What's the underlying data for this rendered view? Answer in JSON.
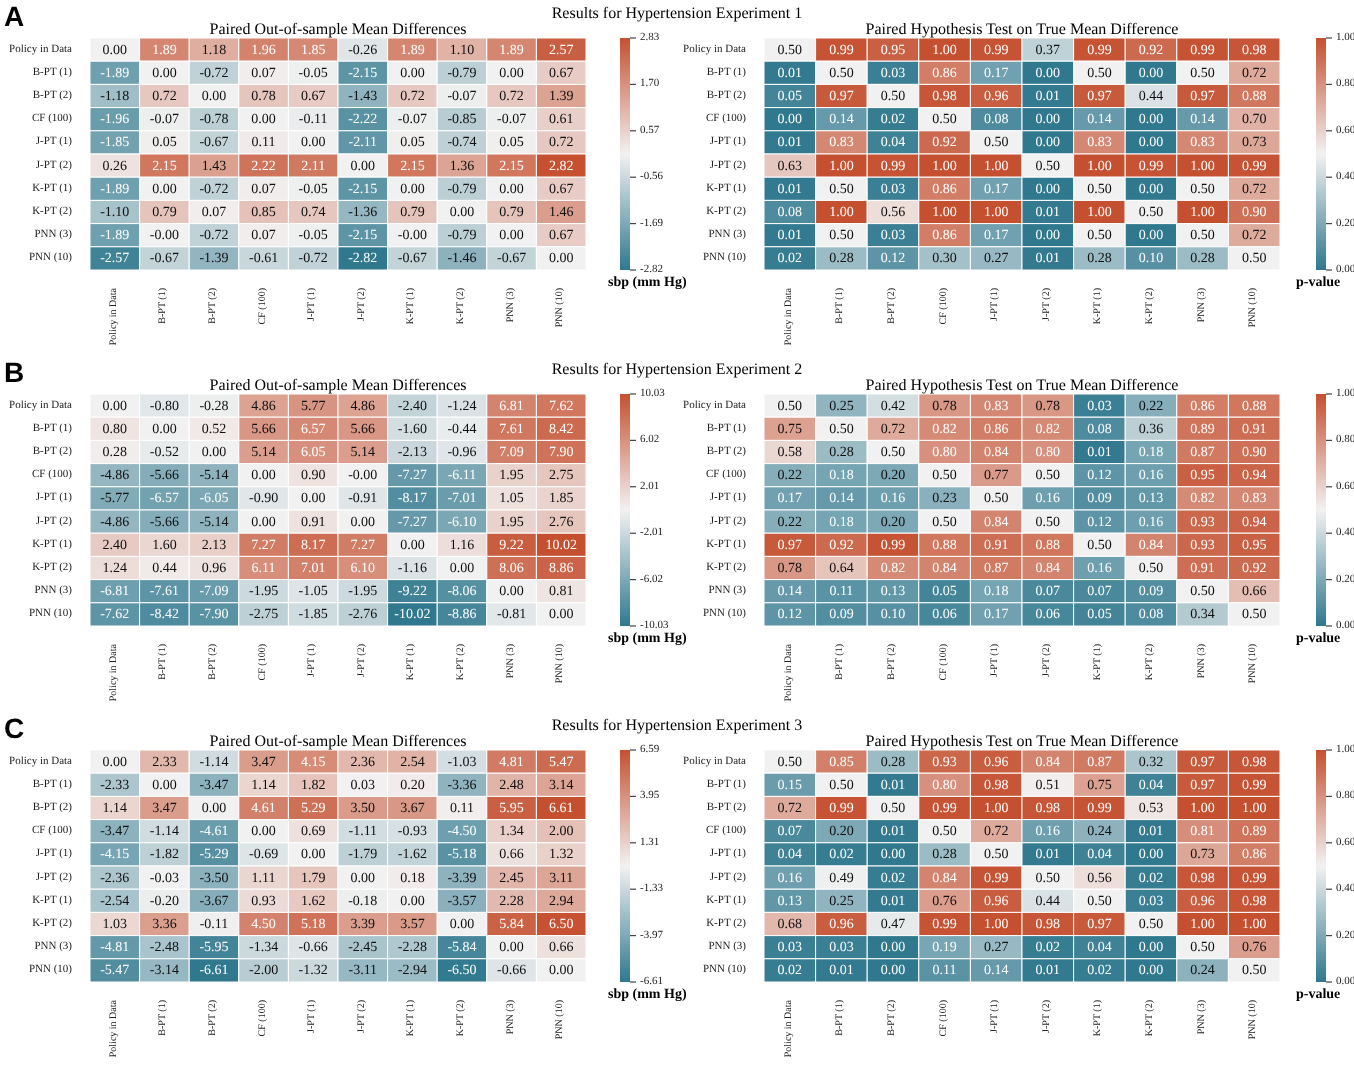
{
  "chart_data": [
    {
      "type": "heatmap",
      "title": "Paired Out-of-sample Mean Differences",
      "annotations": [
        "A",
        "Results for Hypertension Experiment 1"
      ],
      "clabel": "sbp (mm Hg)",
      "categories": [
        "Policy in Data",
        "B-PT (1)",
        "B-PT (2)",
        "CF (100)",
        "J-PT (1)",
        "J-PT (2)",
        "K-PT (1)",
        "K-PT (2)",
        "PNN (3)",
        "PNN (10)"
      ],
      "y_categories": [
        "Policy in Data",
        "B-PT (1)",
        "B-PT (2)",
        "CF (100)",
        "J-PT (1)",
        "J-PT (2)",
        "K-PT (1)",
        "K-PT (2)",
        "PNN (3)",
        "PNN (10)"
      ],
      "cells": [
        [
          0.0,
          1.89,
          1.18,
          1.96,
          1.85,
          -0.26,
          1.89,
          1.1,
          1.89,
          2.57
        ],
        [
          -1.89,
          0.0,
          -0.72,
          0.07,
          -0.05,
          -2.15,
          0.0,
          -0.79,
          0.0,
          0.67
        ],
        [
          -1.18,
          0.72,
          0.0,
          0.78,
          0.67,
          -1.43,
          0.72,
          -0.07,
          0.72,
          1.39
        ],
        [
          -1.96,
          -0.07,
          -0.78,
          0.0,
          -0.11,
          -2.22,
          -0.07,
          -0.85,
          -0.07,
          0.61
        ],
        [
          -1.85,
          0.05,
          -0.67,
          0.11,
          0.0,
          -2.11,
          0.05,
          -0.74,
          0.05,
          0.72
        ],
        [
          0.26,
          2.15,
          1.43,
          2.22,
          2.11,
          0.0,
          2.15,
          1.36,
          2.15,
          2.82
        ],
        [
          -1.89,
          0.0,
          -0.72,
          0.07,
          -0.05,
          -2.15,
          0.0,
          -0.79,
          0.0,
          0.67
        ],
        [
          -1.1,
          0.79,
          0.07,
          0.85,
          0.74,
          -1.36,
          0.79,
          0.0,
          0.79,
          1.46
        ],
        [
          -1.89,
          0,
          -0.72,
          0.07,
          -0.05,
          -2.15,
          0,
          -0.79,
          0.0,
          0.67
        ],
        [
          -2.57,
          -0.67,
          -1.39,
          -0.61,
          -0.72,
          -2.82,
          -0.67,
          -1.46,
          -0.67,
          0.0
        ]
      ],
      "cell_labels": [
        [
          "0.00",
          "1.89",
          "1.18",
          "1.96",
          "1.85",
          "-0.26",
          "1.89",
          "1.10",
          "1.89",
          "2.57"
        ],
        [
          "-1.89",
          "0.00",
          "-0.72",
          "0.07",
          "-0.05",
          "-2.15",
          "0.00",
          "-0.79",
          "0.00",
          "0.67"
        ],
        [
          "-1.18",
          "0.72",
          "0.00",
          "0.78",
          "0.67",
          "-1.43",
          "0.72",
          "-0.07",
          "0.72",
          "1.39"
        ],
        [
          "-1.96",
          "-0.07",
          "-0.78",
          "0.00",
          "-0.11",
          "-2.22",
          "-0.07",
          "-0.85",
          "-0.07",
          "0.61"
        ],
        [
          "-1.85",
          "0.05",
          "-0.67",
          "0.11",
          "0.00",
          "-2.11",
          "0.05",
          "-0.74",
          "0.05",
          "0.72"
        ],
        [
          "0.26",
          "2.15",
          "1.43",
          "2.22",
          "2.11",
          "0.00",
          "2.15",
          "1.36",
          "2.15",
          "2.82"
        ],
        [
          "-1.89",
          "0.00",
          "-0.72",
          "0.07",
          "-0.05",
          "-2.15",
          "0.00",
          "-0.79",
          "0.00",
          "0.67"
        ],
        [
          "-1.10",
          "0.79",
          "0.07",
          "0.85",
          "0.74",
          "-1.36",
          "0.79",
          "0.00",
          "0.79",
          "1.46"
        ],
        [
          "-1.89",
          "-0.00",
          "-0.72",
          "0.07",
          "-0.05",
          "-2.15",
          "-0.00",
          "-0.79",
          "0.00",
          "0.67"
        ],
        [
          "-2.57",
          "-0.67",
          "-1.39",
          "-0.61",
          "-0.72",
          "-2.82",
          "-0.67",
          "-1.46",
          "-0.67",
          "0.00"
        ]
      ],
      "clim": [
        -2.82,
        2.83
      ],
      "cticks": [
        {
          "value": 2.83,
          "label": "2.83"
        },
        {
          "value": 1.7,
          "label": "1.70"
        },
        {
          "value": 0.57,
          "label": "0.57"
        },
        {
          "value": -0.56,
          "label": "-0.56"
        },
        {
          "value": -1.69,
          "label": "-1.69"
        },
        {
          "value": -2.82,
          "label": "-2.82"
        }
      ]
    },
    {
      "type": "heatmap",
      "title": "Paired Hypothesis Test on True Mean Difference",
      "clabel": "p-value",
      "categories": [
        "Policy in Data",
        "B-PT (1)",
        "B-PT (2)",
        "CF (100)",
        "J-PT (1)",
        "J-PT (2)",
        "K-PT (1)",
        "K-PT (2)",
        "PNN (3)",
        "PNN (10)"
      ],
      "y_categories": [
        "Policy in Data",
        "B-PT (1)",
        "B-PT (2)",
        "CF (100)",
        "J-PT (1)",
        "J-PT (2)",
        "K-PT (1)",
        "K-PT (2)",
        "PNN (3)",
        "PNN (10)"
      ],
      "cells": [
        [
          0.5,
          0.99,
          0.95,
          1.0,
          0.99,
          0.37,
          0.99,
          0.92,
          0.99,
          0.98
        ],
        [
          0.01,
          0.5,
          0.03,
          0.86,
          0.17,
          0.0,
          0.5,
          0.0,
          0.5,
          0.72
        ],
        [
          0.05,
          0.97,
          0.5,
          0.98,
          0.96,
          0.01,
          0.97,
          0.44,
          0.97,
          0.88
        ],
        [
          0.0,
          0.14,
          0.02,
          0.5,
          0.08,
          0.0,
          0.14,
          0.0,
          0.14,
          0.7
        ],
        [
          0.01,
          0.83,
          0.04,
          0.92,
          0.5,
          0.0,
          0.83,
          0.0,
          0.83,
          0.73
        ],
        [
          0.63,
          1.0,
          0.99,
          1.0,
          1.0,
          0.5,
          1.0,
          0.99,
          1.0,
          0.99
        ],
        [
          0.01,
          0.5,
          0.03,
          0.86,
          0.17,
          0.0,
          0.5,
          0.0,
          0.5,
          0.72
        ],
        [
          0.08,
          1.0,
          0.56,
          1.0,
          1.0,
          0.01,
          1.0,
          0.5,
          1.0,
          0.9
        ],
        [
          0.01,
          0.5,
          0.03,
          0.86,
          0.17,
          0.0,
          0.5,
          0.0,
          0.5,
          0.72
        ],
        [
          0.02,
          0.28,
          0.12,
          0.3,
          0.27,
          0.01,
          0.28,
          0.1,
          0.28,
          0.5
        ]
      ],
      "cell_labels": [
        [
          "0.50",
          "0.99",
          "0.95",
          "1.00",
          "0.99",
          "0.37",
          "0.99",
          "0.92",
          "0.99",
          "0.98"
        ],
        [
          "0.01",
          "0.50",
          "0.03",
          "0.86",
          "0.17",
          "0.00",
          "0.50",
          "0.00",
          "0.50",
          "0.72"
        ],
        [
          "0.05",
          "0.97",
          "0.50",
          "0.98",
          "0.96",
          "0.01",
          "0.97",
          "0.44",
          "0.97",
          "0.88"
        ],
        [
          "0.00",
          "0.14",
          "0.02",
          "0.50",
          "0.08",
          "0.00",
          "0.14",
          "0.00",
          "0.14",
          "0.70"
        ],
        [
          "0.01",
          "0.83",
          "0.04",
          "0.92",
          "0.50",
          "0.00",
          "0.83",
          "0.00",
          "0.83",
          "0.73"
        ],
        [
          "0.63",
          "1.00",
          "0.99",
          "1.00",
          "1.00",
          "0.50",
          "1.00",
          "0.99",
          "1.00",
          "0.99"
        ],
        [
          "0.01",
          "0.50",
          "0.03",
          "0.86",
          "0.17",
          "0.00",
          "0.50",
          "0.00",
          "0.50",
          "0.72"
        ],
        [
          "0.08",
          "1.00",
          "0.56",
          "1.00",
          "1.00",
          "0.01",
          "1.00",
          "0.50",
          "1.00",
          "0.90"
        ],
        [
          "0.01",
          "0.50",
          "0.03",
          "0.86",
          "0.17",
          "0.00",
          "0.50",
          "0.00",
          "0.50",
          "0.72"
        ],
        [
          "0.02",
          "0.28",
          "0.12",
          "0.30",
          "0.27",
          "0.01",
          "0.28",
          "0.10",
          "0.28",
          "0.50"
        ]
      ],
      "clim": [
        0,
        1
      ],
      "cticks": [
        {
          "value": 0,
          "label": "0.00"
        },
        {
          "value": 0.2,
          "label": "0.20"
        },
        {
          "value": 0.4,
          "label": "0.40"
        },
        {
          "value": 0.6,
          "label": "0.60"
        },
        {
          "value": 0.8,
          "label": "0.80"
        },
        {
          "value": 1,
          "label": "1.00"
        }
      ]
    },
    {
      "type": "heatmap",
      "title": "Paired Out-of-sample Mean Differences",
      "annotations": [
        "B",
        "Results for Hypertension Experiment 2"
      ],
      "clabel": "sbp (mm Hg)",
      "categories": [
        "Policy in Data",
        "B-PT (1)",
        "B-PT (2)",
        "CF (100)",
        "J-PT (1)",
        "J-PT (2)",
        "K-PT (1)",
        "K-PT (2)",
        "PNN (3)",
        "PNN (10)"
      ],
      "y_categories": [
        "Policy in Data",
        "B-PT (1)",
        "B-PT (2)",
        "CF (100)",
        "J-PT (1)",
        "J-PT (2)",
        "K-PT (1)",
        "K-PT (2)",
        "PNN (3)",
        "PNN (10)"
      ],
      "cells": [
        [
          0.0,
          -0.8,
          -0.28,
          4.86,
          5.77,
          4.86,
          -2.4,
          -1.24,
          6.81,
          7.62
        ],
        [
          0.8,
          0.0,
          0.52,
          5.66,
          6.57,
          5.66,
          -1.6,
          -0.44,
          7.61,
          8.42
        ],
        [
          0.28,
          -0.52,
          0.0,
          5.14,
          6.05,
          5.14,
          -2.13,
          -0.96,
          7.09,
          7.9
        ],
        [
          -4.86,
          -5.66,
          -5.14,
          0.0,
          0.9,
          0,
          -7.27,
          -6.11,
          1.95,
          2.75
        ],
        [
          -5.77,
          -6.57,
          -6.05,
          -0.9,
          0.0,
          -0.91,
          -8.17,
          -7.01,
          1.05,
          1.85
        ],
        [
          -4.86,
          -5.66,
          -5.14,
          0.0,
          0.91,
          0.0,
          -7.27,
          -6.1,
          1.95,
          2.76
        ],
        [
          2.4,
          1.6,
          2.13,
          7.27,
          8.17,
          7.27,
          0.0,
          1.16,
          9.22,
          10.02
        ],
        [
          1.24,
          0.44,
          0.96,
          6.11,
          7.01,
          6.1,
          -1.16,
          0.0,
          8.06,
          8.86
        ],
        [
          -6.81,
          -7.61,
          -7.09,
          -1.95,
          -1.05,
          -1.95,
          -9.22,
          -8.06,
          0.0,
          0.81
        ],
        [
          -7.62,
          -8.42,
          -7.9,
          -2.75,
          -1.85,
          -2.76,
          -10.02,
          -8.86,
          -0.81,
          0.0
        ]
      ],
      "cell_labels": [
        [
          "0.00",
          "-0.80",
          "-0.28",
          "4.86",
          "5.77",
          "4.86",
          "-2.40",
          "-1.24",
          "6.81",
          "7.62"
        ],
        [
          "0.80",
          "0.00",
          "0.52",
          "5.66",
          "6.57",
          "5.66",
          "-1.60",
          "-0.44",
          "7.61",
          "8.42"
        ],
        [
          "0.28",
          "-0.52",
          "0.00",
          "5.14",
          "6.05",
          "5.14",
          "-2.13",
          "-0.96",
          "7.09",
          "7.90"
        ],
        [
          "-4.86",
          "-5.66",
          "-5.14",
          "0.00",
          "0.90",
          "-0.00",
          "-7.27",
          "-6.11",
          "1.95",
          "2.75"
        ],
        [
          "-5.77",
          "-6.57",
          "-6.05",
          "-0.90",
          "0.00",
          "-0.91",
          "-8.17",
          "-7.01",
          "1.05",
          "1.85"
        ],
        [
          "-4.86",
          "-5.66",
          "-5.14",
          "0.00",
          "0.91",
          "0.00",
          "-7.27",
          "-6.10",
          "1.95",
          "2.76"
        ],
        [
          "2.40",
          "1.60",
          "2.13",
          "7.27",
          "8.17",
          "7.27",
          "0.00",
          "1.16",
          "9.22",
          "10.02"
        ],
        [
          "1.24",
          "0.44",
          "0.96",
          "6.11",
          "7.01",
          "6.10",
          "-1.16",
          "0.00",
          "8.06",
          "8.86"
        ],
        [
          "-6.81",
          "-7.61",
          "-7.09",
          "-1.95",
          "-1.05",
          "-1.95",
          "-9.22",
          "-8.06",
          "0.00",
          "0.81"
        ],
        [
          "-7.62",
          "-8.42",
          "-7.90",
          "-2.75",
          "-1.85",
          "-2.76",
          "-10.02",
          "-8.86",
          "-0.81",
          "0.00"
        ]
      ],
      "clim": [
        -10.03,
        10.03
      ],
      "cticks": [
        {
          "value": 10.03,
          "label": "10.03"
        },
        {
          "value": 6.02,
          "label": "6.02"
        },
        {
          "value": 2.01,
          "label": "2.01"
        },
        {
          "value": -2.01,
          "label": "-2.01"
        },
        {
          "value": -6.02,
          "label": "-6.02"
        },
        {
          "value": -10.03,
          "label": "-10.03"
        }
      ]
    },
    {
      "type": "heatmap",
      "title": "Paired Hypothesis Test on True Mean Difference",
      "clabel": "p-value",
      "categories": [
        "Policy in Data",
        "B-PT (1)",
        "B-PT (2)",
        "CF (100)",
        "J-PT (1)",
        "J-PT (2)",
        "K-PT (1)",
        "K-PT (2)",
        "PNN (3)",
        "PNN (10)"
      ],
      "y_categories": [
        "Policy in Data",
        "B-PT (1)",
        "B-PT (2)",
        "CF (100)",
        "J-PT (1)",
        "J-PT (2)",
        "K-PT (1)",
        "K-PT (2)",
        "PNN (3)",
        "PNN (10)"
      ],
      "cells": [
        [
          0.5,
          0.25,
          0.42,
          0.78,
          0.83,
          0.78,
          0.03,
          0.22,
          0.86,
          0.88
        ],
        [
          0.75,
          0.5,
          0.72,
          0.82,
          0.86,
          0.82,
          0.08,
          0.36,
          0.89,
          0.91
        ],
        [
          0.58,
          0.28,
          0.5,
          0.8,
          0.84,
          0.8,
          0.01,
          0.18,
          0.87,
          0.9
        ],
        [
          0.22,
          0.18,
          0.2,
          0.5,
          0.77,
          0.5,
          0.12,
          0.16,
          0.95,
          0.94
        ],
        [
          0.17,
          0.14,
          0.16,
          0.23,
          0.5,
          0.16,
          0.09,
          0.13,
          0.82,
          0.83
        ],
        [
          0.22,
          0.18,
          0.2,
          0.5,
          0.84,
          0.5,
          0.12,
          0.16,
          0.93,
          0.94
        ],
        [
          0.97,
          0.92,
          0.99,
          0.88,
          0.91,
          0.88,
          0.5,
          0.84,
          0.93,
          0.95
        ],
        [
          0.78,
          0.64,
          0.82,
          0.84,
          0.87,
          0.84,
          0.16,
          0.5,
          0.91,
          0.92
        ],
        [
          0.14,
          0.11,
          0.13,
          0.05,
          0.18,
          0.07,
          0.07,
          0.09,
          0.5,
          0.66
        ],
        [
          0.12,
          0.09,
          0.1,
          0.06,
          0.17,
          0.06,
          0.05,
          0.08,
          0.34,
          0.5
        ]
      ],
      "cell_labels": [
        [
          "0.50",
          "0.25",
          "0.42",
          "0.78",
          "0.83",
          "0.78",
          "0.03",
          "0.22",
          "0.86",
          "0.88"
        ],
        [
          "0.75",
          "0.50",
          "0.72",
          "0.82",
          "0.86",
          "0.82",
          "0.08",
          "0.36",
          "0.89",
          "0.91"
        ],
        [
          "0.58",
          "0.28",
          "0.50",
          "0.80",
          "0.84",
          "0.80",
          "0.01",
          "0.18",
          "0.87",
          "0.90"
        ],
        [
          "0.22",
          "0.18",
          "0.20",
          "0.50",
          "0.77",
          "0.50",
          "0.12",
          "0.16",
          "0.95",
          "0.94"
        ],
        [
          "0.17",
          "0.14",
          "0.16",
          "0.23",
          "0.50",
          "0.16",
          "0.09",
          "0.13",
          "0.82",
          "0.83"
        ],
        [
          "0.22",
          "0.18",
          "0.20",
          "0.50",
          "0.84",
          "0.50",
          "0.12",
          "0.16",
          "0.93",
          "0.94"
        ],
        [
          "0.97",
          "0.92",
          "0.99",
          "0.88",
          "0.91",
          "0.88",
          "0.50",
          "0.84",
          "0.93",
          "0.95"
        ],
        [
          "0.78",
          "0.64",
          "0.82",
          "0.84",
          "0.87",
          "0.84",
          "0.16",
          "0.50",
          "0.91",
          "0.92"
        ],
        [
          "0.14",
          "0.11",
          "0.13",
          "0.05",
          "0.18",
          "0.07",
          "0.07",
          "0.09",
          "0.50",
          "0.66"
        ],
        [
          "0.12",
          "0.09",
          "0.10",
          "0.06",
          "0.17",
          "0.06",
          "0.05",
          "0.08",
          "0.34",
          "0.50"
        ]
      ],
      "clim": [
        0,
        1
      ],
      "cticks": [
        {
          "value": 0,
          "label": "0.00"
        },
        {
          "value": 0.2,
          "label": "0.20"
        },
        {
          "value": 0.4,
          "label": "0.40"
        },
        {
          "value": 0.6,
          "label": "0.60"
        },
        {
          "value": 0.8,
          "label": "0.80"
        },
        {
          "value": 1,
          "label": "1.00"
        }
      ]
    },
    {
      "type": "heatmap",
      "title": "Paired Out-of-sample Mean Differences",
      "annotations": [
        "C",
        "Results for Hypertension Experiment 3"
      ],
      "clabel": "sbp (mm Hg)",
      "categories": [
        "Policy in Data",
        "B-PT (1)",
        "B-PT (2)",
        "CF (100)",
        "J-PT (1)",
        "J-PT (2)",
        "K-PT (1)",
        "K-PT (2)",
        "PNN (3)",
        "PNN (10)"
      ],
      "y_categories": [
        "Policy in Data",
        "B-PT (1)",
        "B-PT (2)",
        "CF (100)",
        "J-PT (1)",
        "J-PT (2)",
        "K-PT (1)",
        "K-PT (2)",
        "PNN (3)",
        "PNN (10)"
      ],
      "cells": [
        [
          0.0,
          2.33,
          -1.14,
          3.47,
          4.15,
          2.36,
          2.54,
          -1.03,
          4.81,
          5.47
        ],
        [
          -2.33,
          0.0,
          -3.47,
          1.14,
          1.82,
          0.03,
          0.2,
          -3.36,
          2.48,
          3.14
        ],
        [
          1.14,
          3.47,
          0.0,
          4.61,
          5.29,
          3.5,
          3.67,
          0.11,
          5.95,
          6.61
        ],
        [
          -3.47,
          -1.14,
          -4.61,
          0.0,
          0.69,
          -1.11,
          -0.93,
          -4.5,
          1.34,
          2.0
        ],
        [
          -4.15,
          -1.82,
          -5.29,
          -0.69,
          0.0,
          -1.79,
          -1.62,
          -5.18,
          0.66,
          1.32
        ],
        [
          -2.36,
          -0.03,
          -3.5,
          1.11,
          1.79,
          0.0,
          0.18,
          -3.39,
          2.45,
          3.11
        ],
        [
          -2.54,
          -0.2,
          -3.67,
          0.93,
          1.62,
          -0.18,
          0.0,
          -3.57,
          2.28,
          2.94
        ],
        [
          1.03,
          3.36,
          -0.11,
          4.5,
          5.18,
          3.39,
          3.57,
          0.0,
          5.84,
          6.5
        ],
        [
          -4.81,
          -2.48,
          -5.95,
          -1.34,
          -0.66,
          -2.45,
          -2.28,
          -5.84,
          0.0,
          0.66
        ],
        [
          -5.47,
          -3.14,
          -6.61,
          -2.0,
          -1.32,
          -3.11,
          -2.94,
          -6.5,
          -0.66,
          0.0
        ]
      ],
      "cell_labels": [
        [
          "0.00",
          "2.33",
          "-1.14",
          "3.47",
          "4.15",
          "2.36",
          "2.54",
          "-1.03",
          "4.81",
          "5.47"
        ],
        [
          "-2.33",
          "0.00",
          "-3.47",
          "1.14",
          "1.82",
          "0.03",
          "0.20",
          "-3.36",
          "2.48",
          "3.14"
        ],
        [
          "1.14",
          "3.47",
          "0.00",
          "4.61",
          "5.29",
          "3.50",
          "3.67",
          "0.11",
          "5.95",
          "6.61"
        ],
        [
          "-3.47",
          "-1.14",
          "-4.61",
          "0.00",
          "0.69",
          "-1.11",
          "-0.93",
          "-4.50",
          "1.34",
          "2.00"
        ],
        [
          "-4.15",
          "-1.82",
          "-5.29",
          "-0.69",
          "0.00",
          "-1.79",
          "-1.62",
          "-5.18",
          "0.66",
          "1.32"
        ],
        [
          "-2.36",
          "-0.03",
          "-3.50",
          "1.11",
          "1.79",
          "0.00",
          "0.18",
          "-3.39",
          "2.45",
          "3.11"
        ],
        [
          "-2.54",
          "-0.20",
          "-3.67",
          "0.93",
          "1.62",
          "-0.18",
          "0.00",
          "-3.57",
          "2.28",
          "2.94"
        ],
        [
          "1.03",
          "3.36",
          "-0.11",
          "4.50",
          "5.18",
          "3.39",
          "3.57",
          "0.00",
          "5.84",
          "6.50"
        ],
        [
          "-4.81",
          "-2.48",
          "-5.95",
          "-1.34",
          "-0.66",
          "-2.45",
          "-2.28",
          "-5.84",
          "0.00",
          "0.66"
        ],
        [
          "-5.47",
          "-3.14",
          "-6.61",
          "-2.00",
          "-1.32",
          "-3.11",
          "-2.94",
          "-6.50",
          "-0.66",
          "0.00"
        ]
      ],
      "clim": [
        -6.61,
        6.59
      ],
      "cticks": [
        {
          "value": 6.59,
          "label": "6.59"
        },
        {
          "value": 3.95,
          "label": "3.95"
        },
        {
          "value": 1.31,
          "label": "1.31"
        },
        {
          "value": -1.33,
          "label": "-1.33"
        },
        {
          "value": -3.97,
          "label": "-3.97"
        },
        {
          "value": -6.61,
          "label": "-6.61"
        }
      ]
    },
    {
      "type": "heatmap",
      "title": "Paired Hypothesis Test on True Mean Difference",
      "clabel": "p-value",
      "categories": [
        "Policy in Data",
        "B-PT (1)",
        "B-PT (2)",
        "CF (100)",
        "J-PT (1)",
        "J-PT (2)",
        "K-PT (1)",
        "K-PT (2)",
        "PNN (3)",
        "PNN (10)"
      ],
      "y_categories": [
        "Policy in Data",
        "B-PT (1)",
        "B-PT (2)",
        "CF (100)",
        "J-PT (1)",
        "J-PT (2)",
        "K-PT (1)",
        "K-PT (2)",
        "PNN (3)",
        "PNN (10)"
      ],
      "cells": [
        [
          0.5,
          0.85,
          0.28,
          0.93,
          0.96,
          0.84,
          0.87,
          0.32,
          0.97,
          0.98
        ],
        [
          0.15,
          0.5,
          0.01,
          0.8,
          0.98,
          0.51,
          0.75,
          0.04,
          0.97,
          0.99
        ],
        [
          0.72,
          0.99,
          0.5,
          0.99,
          1.0,
          0.98,
          0.99,
          0.53,
          1.0,
          1.0
        ],
        [
          0.07,
          0.2,
          0.01,
          0.5,
          0.72,
          0.16,
          0.24,
          0.01,
          0.81,
          0.89
        ],
        [
          0.04,
          0.02,
          0.0,
          0.28,
          0.5,
          0.01,
          0.04,
          0.0,
          0.73,
          0.86
        ],
        [
          0.16,
          0.49,
          0.02,
          0.84,
          0.99,
          0.5,
          0.56,
          0.02,
          0.98,
          0.99
        ],
        [
          0.13,
          0.25,
          0.01,
          0.76,
          0.96,
          0.44,
          0.5,
          0.03,
          0.96,
          0.98
        ],
        [
          0.68,
          0.96,
          0.47,
          0.99,
          1.0,
          0.98,
          0.97,
          0.5,
          1.0,
          1.0
        ],
        [
          0.03,
          0.03,
          0.0,
          0.19,
          0.27,
          0.02,
          0.04,
          0.0,
          0.5,
          0.76
        ],
        [
          0.02,
          0.01,
          0.0,
          0.11,
          0.14,
          0.01,
          0.02,
          0.0,
          0.24,
          0.5
        ]
      ],
      "cell_labels": [
        [
          "0.50",
          "0.85",
          "0.28",
          "0.93",
          "0.96",
          "0.84",
          "0.87",
          "0.32",
          "0.97",
          "0.98"
        ],
        [
          "0.15",
          "0.50",
          "0.01",
          "0.80",
          "0.98",
          "0.51",
          "0.75",
          "0.04",
          "0.97",
          "0.99"
        ],
        [
          "0.72",
          "0.99",
          "0.50",
          "0.99",
          "1.00",
          "0.98",
          "0.99",
          "0.53",
          "1.00",
          "1.00"
        ],
        [
          "0.07",
          "0.20",
          "0.01",
          "0.50",
          "0.72",
          "0.16",
          "0.24",
          "0.01",
          "0.81",
          "0.89"
        ],
        [
          "0.04",
          "0.02",
          "0.00",
          "0.28",
          "0.50",
          "0.01",
          "0.04",
          "0.00",
          "0.73",
          "0.86"
        ],
        [
          "0.16",
          "0.49",
          "0.02",
          "0.84",
          "0.99",
          "0.50",
          "0.56",
          "0.02",
          "0.98",
          "0.99"
        ],
        [
          "0.13",
          "0.25",
          "0.01",
          "0.76",
          "0.96",
          "0.44",
          "0.50",
          "0.03",
          "0.96",
          "0.98"
        ],
        [
          "0.68",
          "0.96",
          "0.47",
          "0.99",
          "1.00",
          "0.98",
          "0.97",
          "0.50",
          "1.00",
          "1.00"
        ],
        [
          "0.03",
          "0.03",
          "0.00",
          "0.19",
          "0.27",
          "0.02",
          "0.04",
          "0.00",
          "0.50",
          "0.76"
        ],
        [
          "0.02",
          "0.01",
          "0.00",
          "0.11",
          "0.14",
          "0.01",
          "0.02",
          "0.00",
          "0.24",
          "0.50"
        ]
      ],
      "clim": [
        0,
        1
      ],
      "cticks": [
        {
          "value": 0,
          "label": "0.00"
        },
        {
          "value": 0.2,
          "label": "0.20"
        },
        {
          "value": 0.4,
          "label": "0.40"
        },
        {
          "value": 0.6,
          "label": "0.60"
        },
        {
          "value": 0.8,
          "label": "0.80"
        },
        {
          "value": 1,
          "label": "1.00"
        }
      ]
    }
  ]
}
